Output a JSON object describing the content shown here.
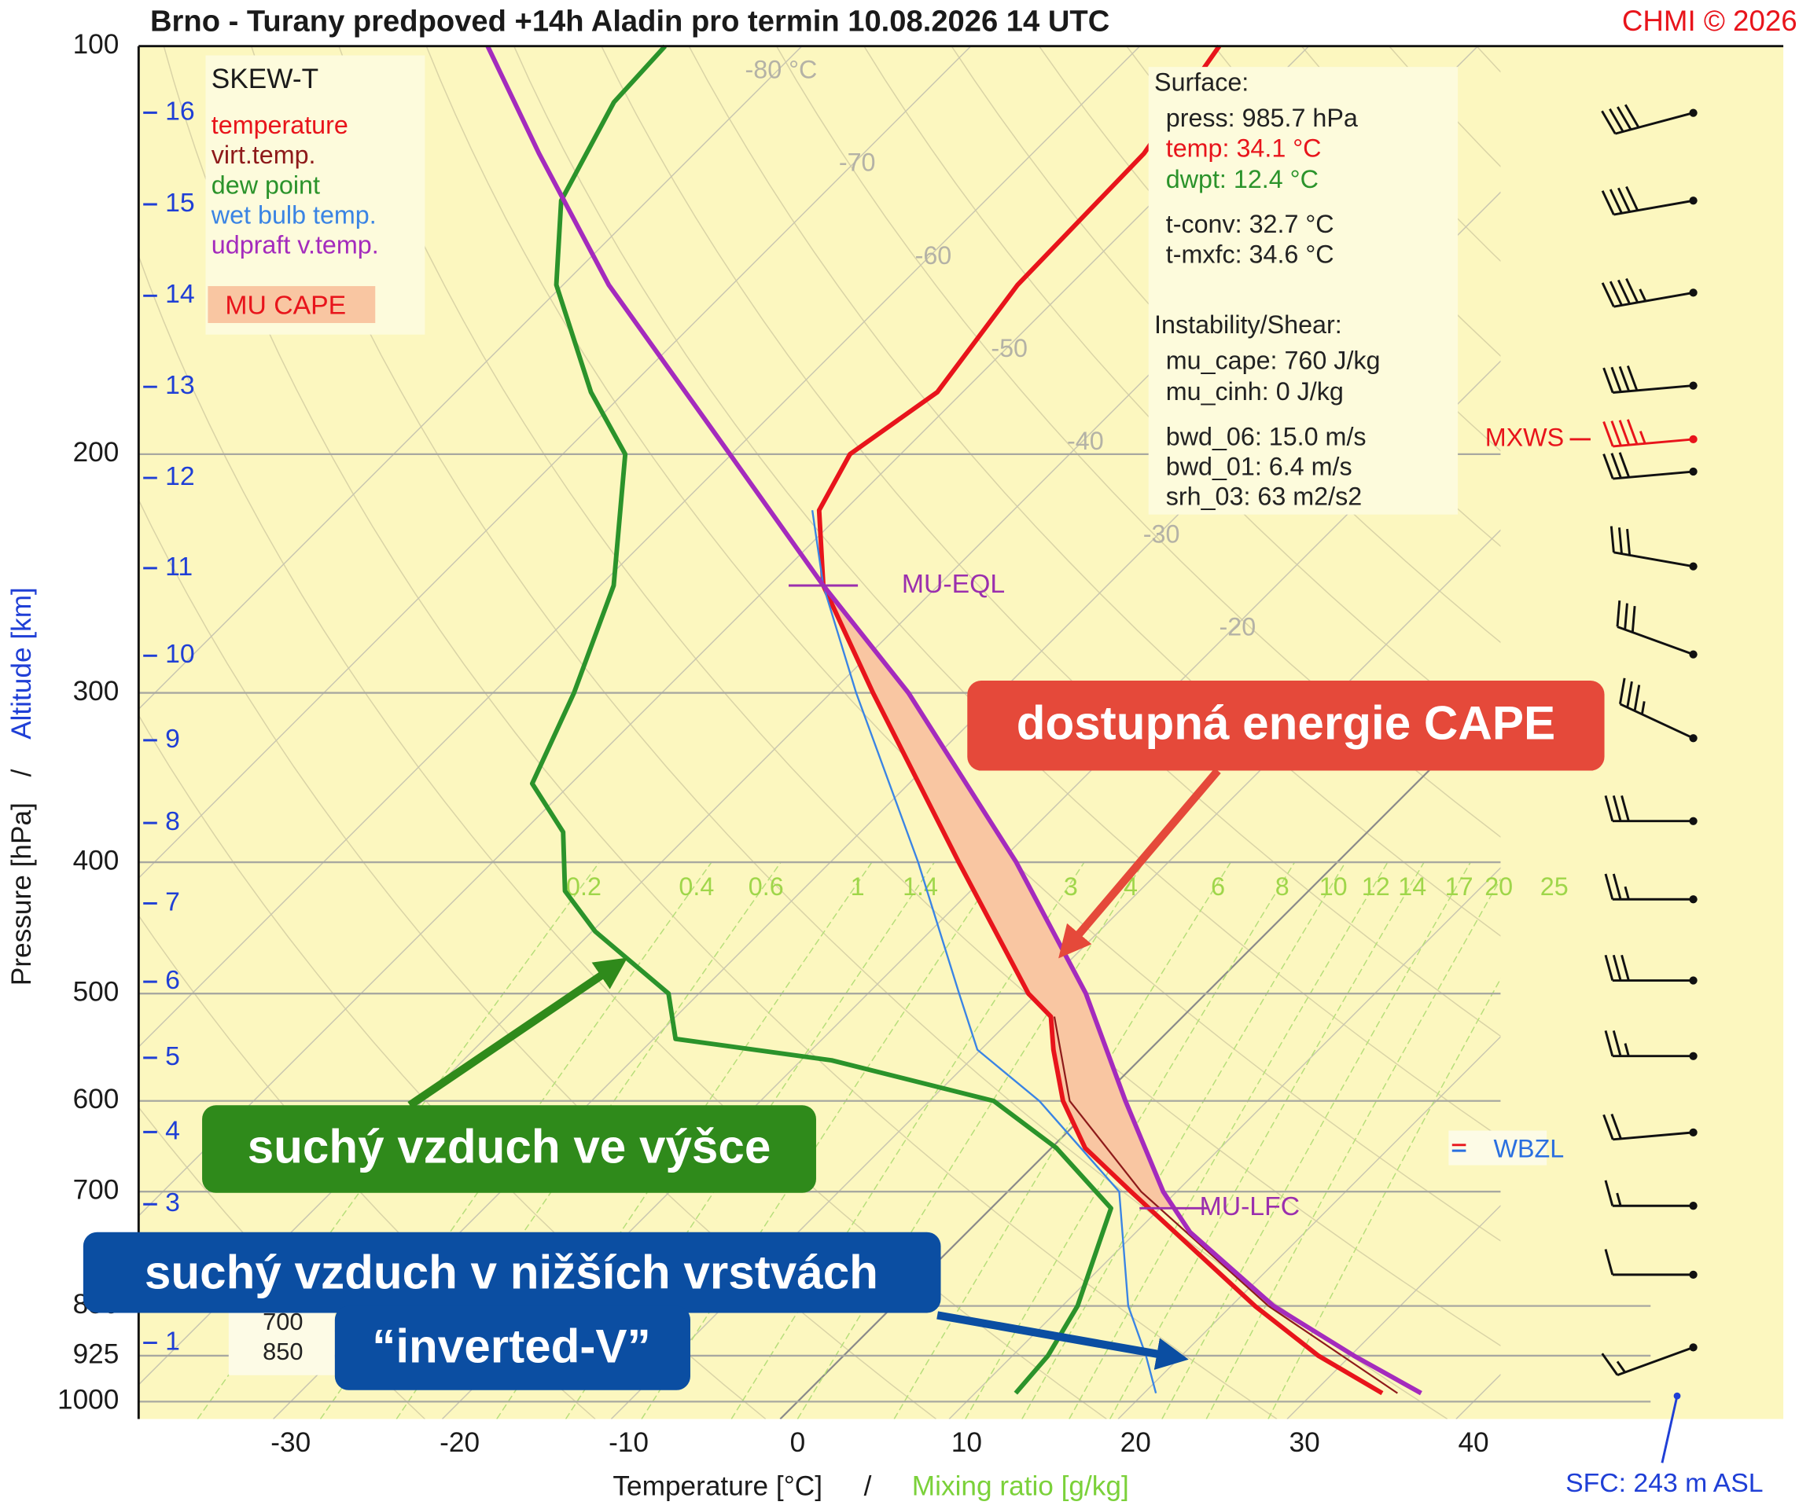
{
  "title": "Brno - Turany predpoved +14h Aladin pro termin 10.08.2026 14 UTC",
  "credit": "CHMI © 2026",
  "chart_data": {
    "type": "skewt",
    "legend_title": "SKEW-T",
    "series": [
      {
        "name": "temperature",
        "color": "#e8141b",
        "pressure": [
          985.7,
          925,
          850,
          700,
          650,
          600,
          550,
          520,
          500,
          400,
          300,
          250,
          220,
          200,
          180,
          150,
          120,
          100
        ],
        "values": [
          34.1,
          28.1,
          21.4,
          7.3,
          2.0,
          -2.1,
          -5.7,
          -7.8,
          -10.5,
          -22.4,
          -37.5,
          -46.8,
          -51.5,
          -53.0,
          -51.5,
          -53.1,
          -53.4,
          -55.3
        ]
      },
      {
        "name": "virt.temp.",
        "color": "#8e1a1a",
        "pressure": [
          985.7,
          850,
          700,
          600,
          520
        ],
        "values": [
          35.0,
          22.2,
          7.9,
          -1.7,
          -7.6
        ]
      },
      {
        "name": "dew point",
        "color": "#2b932b",
        "pressure": [
          985.7,
          925,
          850,
          720,
          650,
          600,
          560,
          540,
          500,
          450,
          420,
          380,
          350,
          300,
          250,
          200,
          180,
          150,
          130,
          110,
          100
        ],
        "values": [
          12.4,
          12.1,
          10.9,
          7.1,
          0.3,
          -6.2,
          -18.2,
          -28.7,
          -31.8,
          -39.8,
          -44.0,
          -47.6,
          -52.3,
          -55.2,
          -59.2,
          -66.3,
          -72.0,
          -80.4,
          -85.1,
          -87.8,
          -88.1
        ]
      },
      {
        "name": "wet bulb temp.",
        "color": "#3a84e4",
        "pressure": [
          985.7,
          925,
          850,
          700,
          600,
          550,
          500,
          400,
          300,
          250,
          220
        ],
        "values": [
          20.7,
          17.9,
          13.9,
          6.6,
          -3.5,
          -10.2,
          -14.6,
          -24.8,
          -38.5,
          -46.8,
          -51.9
        ]
      },
      {
        "name": "udpraft v.temp.",
        "color": "#a42bbd",
        "pressure": [
          985.7,
          925,
          850,
          750,
          700,
          600,
          500,
          400,
          300,
          250,
          200,
          150,
          120,
          100
        ],
        "values": [
          36.4,
          30.2,
          22.5,
          13.2,
          9.2,
          1.6,
          -7.1,
          -19.0,
          -35.4,
          -46.8,
          -60.1,
          -77.3,
          -89.2,
          -98.6
        ]
      }
    ],
    "cape": {
      "label": "MU CAPE",
      "color": "#f9c6a2"
    },
    "xlabel": "Temperature [°C]",
    "xlabel_separator": "/",
    "mixing_label": "Mixing ratio [g/kg]",
    "ylabel": "Pressure [hPa]",
    "ylabel_separator": "/",
    "altitude_label": "Altitude [km]",
    "xlim": [
      -39,
      41.6
    ],
    "xticks": [
      -30,
      -20,
      -10,
      0,
      10,
      20,
      30,
      40
    ],
    "ylim": [
      1030,
      100
    ],
    "yscale": "log",
    "yticks": [
      100,
      200,
      300,
      400,
      500,
      600,
      700,
      850,
      925,
      1000
    ],
    "isotherm_labels": [
      {
        "value": -80,
        "label": "-80 °C"
      },
      -70,
      -60,
      -50,
      -40,
      -30,
      -20
    ],
    "mixing_ratio_lines": [
      0.2,
      0.4,
      0.6,
      1,
      1.4,
      2,
      3,
      4,
      6,
      8,
      10,
      12,
      14,
      17,
      20,
      25
    ],
    "altitude_ticks": [
      1,
      2,
      3,
      4,
      5,
      6,
      7,
      8,
      9,
      10,
      11,
      12,
      13,
      14,
      15,
      16
    ],
    "surface_altitude": 243,
    "surface_label": "SFC: 243 m ASL",
    "levels": [
      {
        "label": "MU-EQL",
        "pressure": 250,
        "color": "#9b2fae"
      },
      {
        "label": "MU-LFC",
        "pressure": 720,
        "color": "#9b2fae"
      },
      {
        "label": "WBZL",
        "pressure": 653,
        "color": "#2a6fe0"
      },
      {
        "label": "MXWS",
        "pressure": 195,
        "color": "#e8141b"
      }
    ],
    "wind": {
      "pressure": [
        112,
        130,
        152,
        178,
        195,
        206,
        242,
        281,
        324,
        373,
        426,
        489,
        556,
        633,
        717,
        806,
        912
      ],
      "direction": [
        255,
        260,
        260,
        265,
        265,
        265,
        280,
        290,
        295,
        270,
        270,
        270,
        270,
        265,
        270,
        270,
        250
      ],
      "speed": [
        40,
        40,
        45,
        40,
        45,
        30,
        30,
        30,
        35,
        30,
        25,
        30,
        25,
        20,
        15,
        10,
        15
      ]
    },
    "inset_labels": [
      "700",
      "850"
    ]
  },
  "info_panel": [
    {
      "title": "Surface:",
      "lines": [
        {
          "text": "press: 985.7 hPa",
          "color": "#222222"
        },
        {
          "text": "temp: 34.1 °C",
          "color": "#e8141b"
        },
        {
          "text": "dwpt: 12.4 °C",
          "color": "#2b932b"
        },
        {
          "text": "t-conv: 32.7 °C",
          "color": "#222222"
        },
        {
          "text": "t-mxfc: 34.6 °C",
          "color": "#222222"
        }
      ]
    },
    {
      "title": "Instability/Shear:",
      "lines": [
        {
          "text": "mu_cape: 760 J/kg",
          "color": "#222222"
        },
        {
          "text": "mu_cinh: 0 J/kg",
          "color": "#222222"
        },
        {
          "text": "bwd_06: 15.0 m/s",
          "color": "#222222"
        },
        {
          "text": "bwd_01: 6.4 m/s",
          "color": "#222222"
        },
        {
          "text": "srh_03: 63 m2/s2",
          "color": "#222222"
        }
      ]
    }
  ],
  "annotations": [
    {
      "text": "dostupná energie CAPE"
    },
    {
      "text": "suchý vzduch ve výšce"
    },
    {
      "lines": [
        "suchý vzduch v nižších vrstvách",
        "“inverted-V”"
      ]
    }
  ]
}
